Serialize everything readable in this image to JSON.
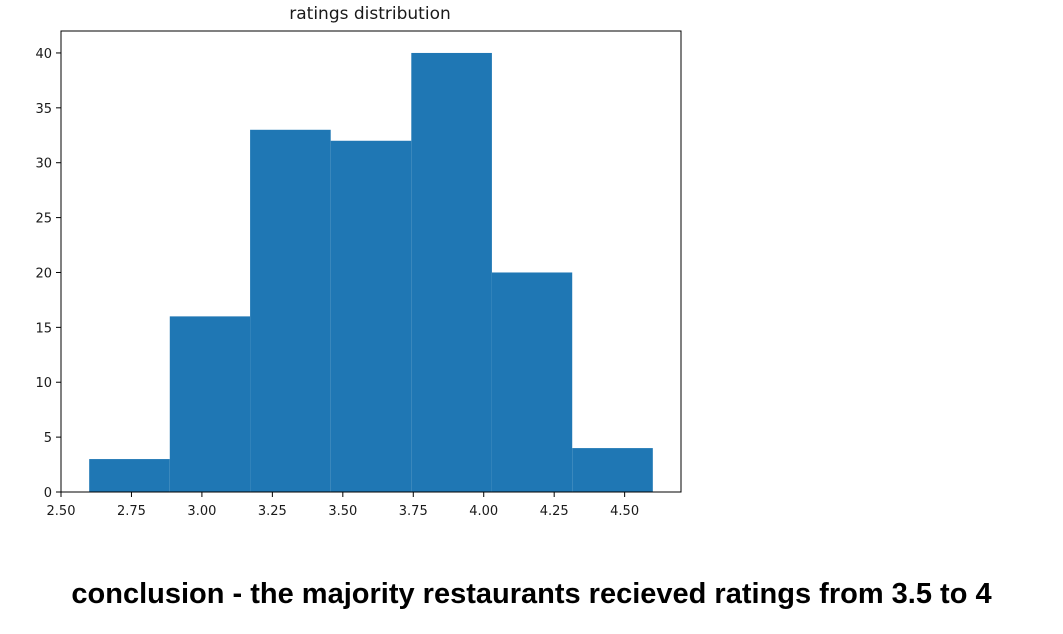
{
  "chart_data": {
    "type": "histogram",
    "title": "ratings distribution",
    "xlabel": "",
    "ylabel": "",
    "bins": [
      {
        "start": 2.6,
        "end": 2.886,
        "count": 3
      },
      {
        "start": 2.886,
        "end": 3.171,
        "count": 16
      },
      {
        "start": 3.171,
        "end": 3.457,
        "count": 33
      },
      {
        "start": 3.457,
        "end": 3.743,
        "count": 32
      },
      {
        "start": 3.743,
        "end": 4.029,
        "count": 40
      },
      {
        "start": 4.029,
        "end": 4.314,
        "count": 20
      },
      {
        "start": 4.314,
        "end": 4.6,
        "count": 4
      }
    ],
    "xlim": [
      2.5,
      4.7
    ],
    "ylim": [
      0,
      42
    ],
    "xticks": [
      2.5,
      2.75,
      3.0,
      3.25,
      3.5,
      3.75,
      4.0,
      4.25,
      4.5
    ],
    "xtick_labels": [
      "2.50",
      "2.75",
      "3.00",
      "3.25",
      "3.50",
      "3.75",
      "4.00",
      "4.25",
      "4.50"
    ],
    "yticks": [
      0,
      5,
      10,
      15,
      20,
      25,
      30,
      35,
      40
    ],
    "ytick_labels": [
      "0",
      "5",
      "10",
      "15",
      "20",
      "25",
      "30",
      "35",
      "40"
    ],
    "bar_color": "#1f77b4",
    "grid": false
  },
  "conclusion": "conclusion - the majority restaurants recieved ratings from 3.5 to 4"
}
